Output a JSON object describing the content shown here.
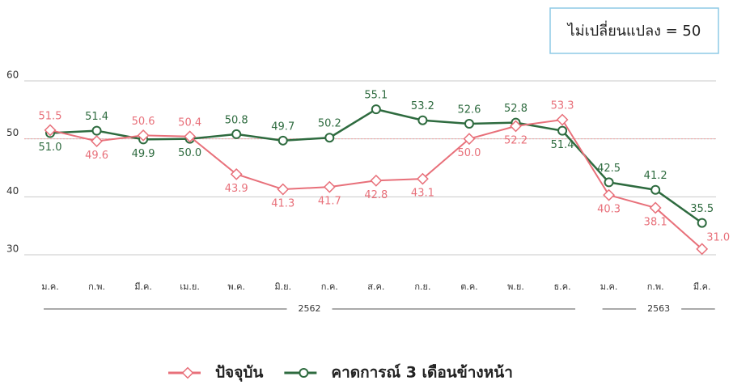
{
  "chart_data": {
    "type": "line",
    "annotation": "ไม่เปลี่ยนแปลง = 50",
    "reference_line": 50,
    "categories": [
      "ม.ค.",
      "ก.พ.",
      "มี.ค.",
      "เม.ย.",
      "พ.ค.",
      "มิ.ย.",
      "ก.ค.",
      "ส.ค.",
      "ก.ย.",
      "ต.ค.",
      "พ.ย.",
      "ธ.ค.",
      "ม.ค.",
      "ก.พ.",
      "มี.ค."
    ],
    "year_groups": [
      {
        "label": "2562",
        "count": 12
      },
      {
        "label": "2563",
        "count": 3
      }
    ],
    "series": [
      {
        "name": "ปัจจุบัน",
        "color": "#e8707a",
        "marker": "square",
        "values": [
          51.5,
          49.6,
          50.6,
          50.4,
          43.9,
          41.3,
          41.7,
          42.8,
          43.1,
          50.0,
          52.2,
          53.3,
          40.3,
          38.1,
          31.0
        ],
        "value_labels": [
          "51.5",
          "49.6",
          "50.6",
          "50.4",
          "43.9",
          "41.3",
          "41.7",
          "42.8",
          "43.1",
          "50.0",
          "52.2",
          "53.3",
          "40.3",
          "38.1",
          "31.0"
        ]
      },
      {
        "name": "คาดการณ์ 3 เดือนข้างหน้า",
        "color": "#2e6b3f",
        "marker": "circle",
        "values": [
          51.0,
          51.4,
          49.9,
          50.0,
          50.8,
          49.7,
          50.2,
          55.1,
          53.2,
          52.6,
          52.8,
          51.4,
          42.5,
          41.2,
          35.5
        ],
        "value_labels": [
          "51.0",
          "51.4",
          "49.9",
          "50.0",
          "50.8",
          "49.7",
          "50.2",
          "55.1",
          "53.2",
          "52.6",
          "52.8",
          "51.4",
          "42.5",
          "41.2",
          "35.5"
        ]
      }
    ],
    "ylim": [
      30,
      60
    ],
    "yticks": [
      30,
      40,
      50,
      60
    ],
    "grid": true
  }
}
